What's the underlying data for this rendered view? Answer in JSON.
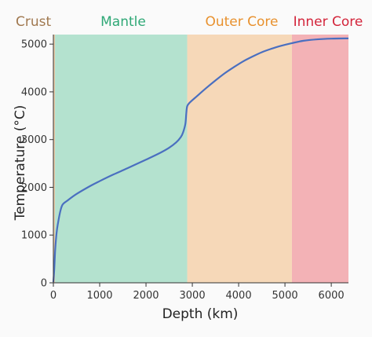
{
  "chart_data": {
    "type": "line",
    "xlabel": "Depth (km)",
    "ylabel": "Temperature (°C)",
    "xlim": [
      0,
      6371
    ],
    "ylim": [
      0,
      5200
    ],
    "xticks": [
      0,
      1000,
      2000,
      3000,
      4000,
      5000,
      6000
    ],
    "yticks": [
      0,
      1000,
      2000,
      3000,
      4000,
      5000
    ],
    "grid": false,
    "layers": [
      {
        "name": "Crust",
        "from": 0,
        "to": 35,
        "fill": "#e8c9a6",
        "label_color": "#a0784f"
      },
      {
        "name": "Mantle",
        "from": 35,
        "to": 2890,
        "fill": "#b4e2cf",
        "label_color": "#2fa876"
      },
      {
        "name": "Outer Core",
        "from": 2890,
        "to": 5150,
        "fill": "#f6d8b8",
        "label_color": "#e8912e"
      },
      {
        "name": "Inner Core",
        "from": 5150,
        "to": 6371,
        "fill": "#f3b2b6",
        "label_color": "#d3243a"
      }
    ],
    "series": [
      {
        "color": "#4a6fc0",
        "x": [
          0,
          20,
          40,
          70,
          100,
          150,
          200,
          300,
          500,
          800,
          1000,
          1300,
          1600,
          2000,
          2300,
          2500,
          2650,
          2750,
          2800,
          2850,
          2870,
          2890,
          2950,
          3100,
          3300,
          3500,
          3700,
          3900,
          4100,
          4300,
          4500,
          4700,
          4900,
          5150,
          5400,
          5700,
          6000,
          6371
        ],
        "y": [
          15,
          300,
          700,
          1050,
          1250,
          1500,
          1640,
          1720,
          1860,
          2030,
          2130,
          2270,
          2400,
          2580,
          2720,
          2830,
          2940,
          3050,
          3150,
          3330,
          3550,
          3700,
          3780,
          3910,
          4080,
          4240,
          4390,
          4520,
          4640,
          4740,
          4830,
          4900,
          4960,
          5020,
          5070,
          5100,
          5115,
          5120
        ]
      }
    ]
  }
}
